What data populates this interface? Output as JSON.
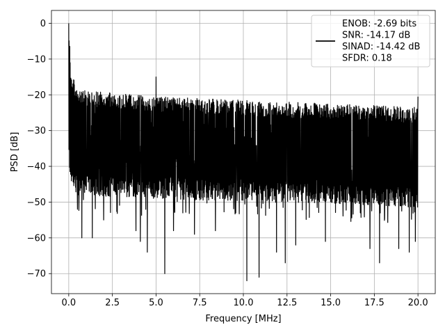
{
  "chart_data": {
    "type": "line",
    "title": "",
    "xlabel": "Frequency [MHz]",
    "ylabel": "PSD [dB]",
    "xlim": [
      -0.99,
      20.99
    ],
    "ylim": [
      -75.6,
      3.6
    ],
    "xticks": [
      0.0,
      2.5,
      5.0,
      7.5,
      10.0,
      12.5,
      15.0,
      17.5,
      20.0
    ],
    "xtick_labels": [
      "0.0",
      "2.5",
      "5.0",
      "7.5",
      "10.0",
      "12.5",
      "15.0",
      "17.5",
      "20.0"
    ],
    "yticks": [
      0,
      -10,
      -20,
      -30,
      -40,
      -50,
      -60,
      -70
    ],
    "ytick_labels": [
      "0",
      "−10",
      "−20",
      "−30",
      "−40",
      "−50",
      "−60",
      "−70"
    ],
    "grid": true,
    "legend": {
      "placement": "upper-right",
      "entries": [
        "ENOB: -2.69 bits",
        "SNR: -14.17 dB",
        "SINAD: -14.42 dB",
        "SFDR: 0.18"
      ]
    },
    "series": [
      {
        "color": "#000000",
        "x_range": [
          0,
          20
        ],
        "num_points": 2000,
        "envelope": {
          "x": [
            0.0,
            0.15,
            0.5,
            2.5,
            5.0,
            7.5,
            10.0,
            12.5,
            15.0,
            17.5,
            20.0
          ],
          "upper": [
            0.0,
            -14.0,
            -18.5,
            -19.5,
            -20.5,
            -21.0,
            -21.5,
            -22.0,
            -22.5,
            -23.0,
            -23.5
          ],
          "lower": [
            -41.0,
            -45.0,
            -48.0,
            -48.5,
            -49.0,
            -49.5,
            -49.5,
            -50.0,
            -50.5,
            -51.0,
            -51.5
          ]
        },
        "peaks": [
          {
            "x": 0.0,
            "y": 0.0
          },
          {
            "x": 0.03,
            "y": -9.0
          },
          {
            "x": 5.0,
            "y": -15.0
          },
          {
            "x": 20.0,
            "y": -20.5
          }
        ],
        "dips": [
          {
            "x": 0.5,
            "y": -52.0
          },
          {
            "x": 0.75,
            "y": -60.0
          },
          {
            "x": 1.35,
            "y": -60.0
          },
          {
            "x": 2.0,
            "y": -55.0
          },
          {
            "x": 3.85,
            "y": -58.0
          },
          {
            "x": 4.1,
            "y": -61.0
          },
          {
            "x": 4.5,
            "y": -64.0
          },
          {
            "x": 5.5,
            "y": -70.0
          },
          {
            "x": 6.0,
            "y": -58.0
          },
          {
            "x": 7.2,
            "y": -59.0
          },
          {
            "x": 8.4,
            "y": -58.0
          },
          {
            "x": 10.2,
            "y": -72.0
          },
          {
            "x": 10.9,
            "y": -71.0
          },
          {
            "x": 11.9,
            "y": -64.0
          },
          {
            "x": 12.4,
            "y": -67.0
          },
          {
            "x": 13.0,
            "y": -62.0
          },
          {
            "x": 14.7,
            "y": -61.0
          },
          {
            "x": 17.25,
            "y": -63.0
          },
          {
            "x": 17.8,
            "y": -67.0
          },
          {
            "x": 18.9,
            "y": -63.0
          },
          {
            "x": 19.5,
            "y": -64.0
          },
          {
            "x": 19.85,
            "y": -61.0
          }
        ]
      }
    ]
  }
}
